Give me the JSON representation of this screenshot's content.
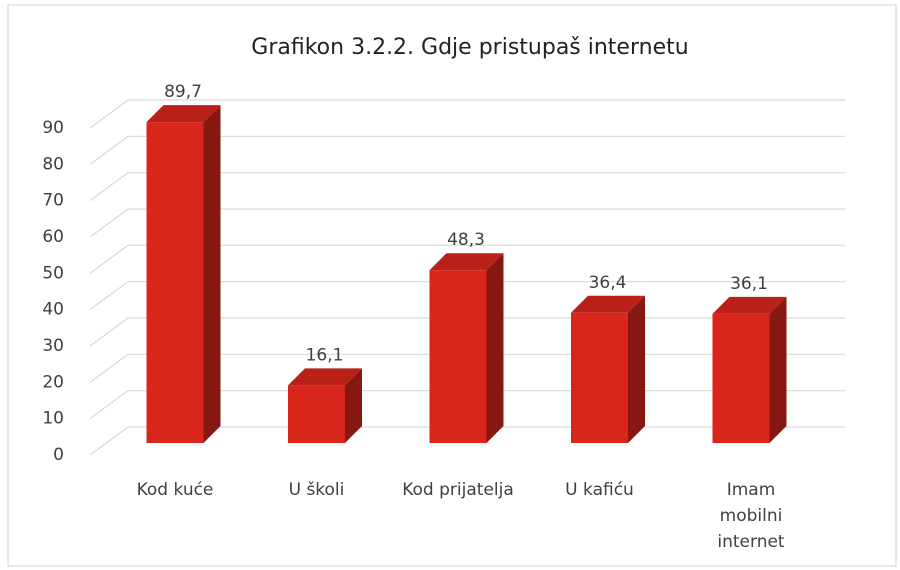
{
  "chart_data": {
    "type": "bar3d",
    "title": "Grafikon 3.2.2. Gdje pristupaš internetu",
    "categories": [
      "Kod kuće",
      "U školi",
      "Kod prijatelja",
      "U kafiću",
      "Imam mobilni internet"
    ],
    "values": [
      89.7,
      16.1,
      48.3,
      36.4,
      36.1
    ],
    "value_labels": [
      "89,7",
      "16,1",
      "48,3",
      "36,4",
      "36,1"
    ],
    "color": "#d9261c",
    "ylim": [
      0,
      90
    ],
    "yticks": [
      0,
      10,
      20,
      30,
      40,
      50,
      60,
      70,
      80,
      90
    ],
    "grid": true
  }
}
